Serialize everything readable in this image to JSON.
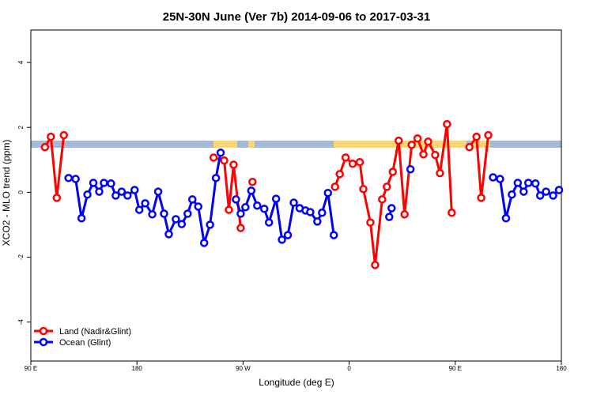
{
  "chart_data": {
    "type": "line",
    "title": "25N-30N June (Ver 7b)   2014-09-06 to 2017-03-31",
    "x_label": "Longitude (deg E)",
    "y_label": "XCO2 - MLO trend (ppm)",
    "xlim": [
      90,
      540
    ],
    "xticks": [
      {
        "value": 90,
        "label": "90 E"
      },
      180,
      {
        "value": 270,
        "label": "90 W"
      },
      {
        "value": 360,
        "label": "0"
      },
      {
        "value": 450,
        "label": "90 E"
      },
      {
        "value": 540,
        "label": "180"
      }
    ],
    "ylim": [
      -5.2,
      5
    ],
    "yticks": [
      -4,
      -2,
      0,
      2,
      4
    ],
    "legend": "bottomleft",
    "series": [
      {
        "name": "Land (Nadir&Glint)",
        "color": "#ff0000",
        "x": [
          102,
          107,
          112,
          118,
          null,
          245,
          254,
          258,
          262,
          268,
          null,
          278,
          null,
          348,
          352,
          357,
          363,
          369,
          372,
          378,
          382,
          388,
          392,
          397,
          402,
          407,
          413,
          418,
          423,
          427,
          433,
          437,
          443,
          447,
          null,
          462,
          468,
          472,
          478
        ],
        "values": [
          1.39,
          1.71,
          -0.17,
          1.76,
          null,
          1.07,
          0.98,
          -0.54,
          0.85,
          -1.1,
          null,
          0.32,
          null,
          0.17,
          0.56,
          1.07,
          0.88,
          0.93,
          0.1,
          -0.93,
          -2.24,
          -0.22,
          0.17,
          0.63,
          1.59,
          -0.68,
          1.46,
          1.66,
          1.17,
          1.56,
          1.15,
          0.59,
          2.1,
          -0.63,
          null,
          1.39,
          1.71,
          -0.17,
          1.76
        ]
      },
      {
        "name": "Ocean (Glint)",
        "color": "#0000ff",
        "x": [
          122,
          128,
          133,
          138,
          143,
          148,
          152,
          158,
          162,
          167,
          172,
          178,
          182,
          187,
          193,
          198,
          203,
          207,
          213,
          218,
          223,
          227,
          232,
          237,
          242,
          247,
          251,
          null,
          264,
          268,
          272,
          277,
          282,
          288,
          292,
          298,
          303,
          308,
          313,
          318,
          323,
          327,
          333,
          337,
          342,
          347,
          null,
          394,
          396,
          null,
          412,
          null,
          482,
          488,
          493,
          498,
          503,
          508,
          512,
          518,
          522,
          527,
          533,
          538
        ],
        "values": [
          0.44,
          0.41,
          -0.8,
          -0.07,
          0.29,
          0.02,
          0.29,
          0.27,
          -0.1,
          0.02,
          -0.1,
          0.07,
          -0.54,
          -0.34,
          -0.68,
          0.02,
          -0.66,
          -1.29,
          -0.83,
          -0.98,
          -0.66,
          -0.22,
          -0.44,
          -1.56,
          -1.0,
          0.44,
          1.22,
          null,
          -0.22,
          -0.66,
          -0.46,
          0.05,
          -0.41,
          -0.51,
          -0.93,
          -0.2,
          -1.46,
          -1.32,
          -0.32,
          -0.49,
          -0.56,
          -0.61,
          -0.9,
          -0.63,
          -0.02,
          -1.32,
          null,
          -0.76,
          -0.49,
          null,
          0.71,
          null,
          0.46,
          0.41,
          -0.8,
          -0.07,
          0.29,
          0.02,
          0.29,
          0.27,
          -0.1,
          0.02,
          -0.1,
          0.07
        ]
      }
    ]
  }
}
